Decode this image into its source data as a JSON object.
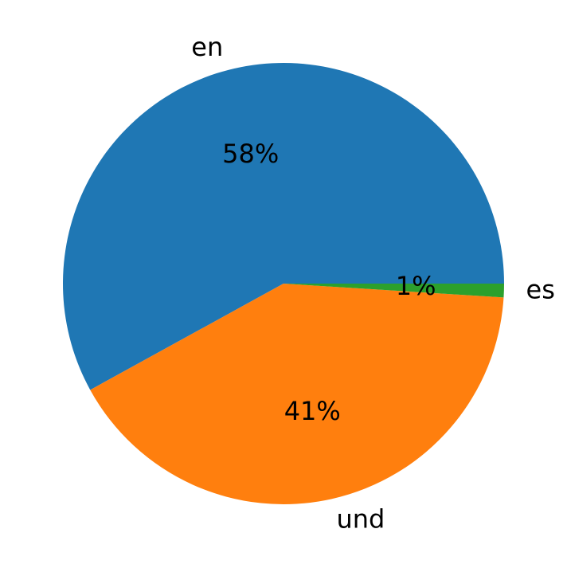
{
  "chart_data": {
    "type": "pie",
    "categories": [
      "en",
      "und",
      "es"
    ],
    "values": [
      58,
      41,
      1
    ],
    "value_labels": [
      "58%",
      "41%",
      "1%"
    ],
    "colors": [
      "#1f77b4",
      "#ff7f0e",
      "#2ca02c"
    ]
  }
}
